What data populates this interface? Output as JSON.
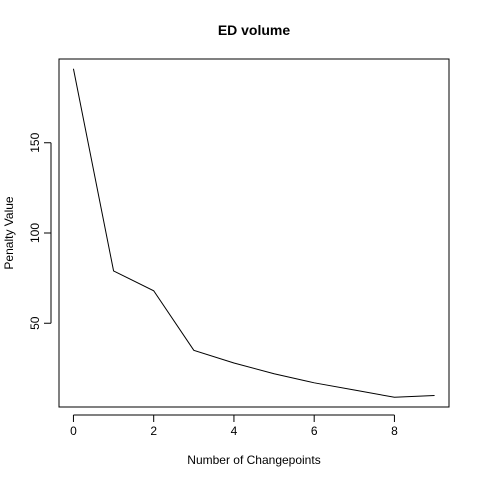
{
  "chart_data": {
    "type": "line",
    "title": "ED volume",
    "xlabel": "Number of Changepoints",
    "ylabel": "Penalty Value",
    "x": [
      0,
      1,
      2,
      3,
      4,
      5,
      6,
      7,
      8,
      9
    ],
    "series": [
      {
        "values": [
          191,
          79,
          68,
          35,
          28,
          22,
          17,
          13,
          9,
          10
        ]
      }
    ],
    "xlim": [
      -0.36,
      9.36
    ],
    "ylim": [
      3.6,
      196.4
    ],
    "xticks": [
      0,
      2,
      4,
      6,
      8
    ],
    "yticks": [
      50,
      100,
      150
    ],
    "line_color": "#000000",
    "grid": false,
    "legend": "none"
  }
}
